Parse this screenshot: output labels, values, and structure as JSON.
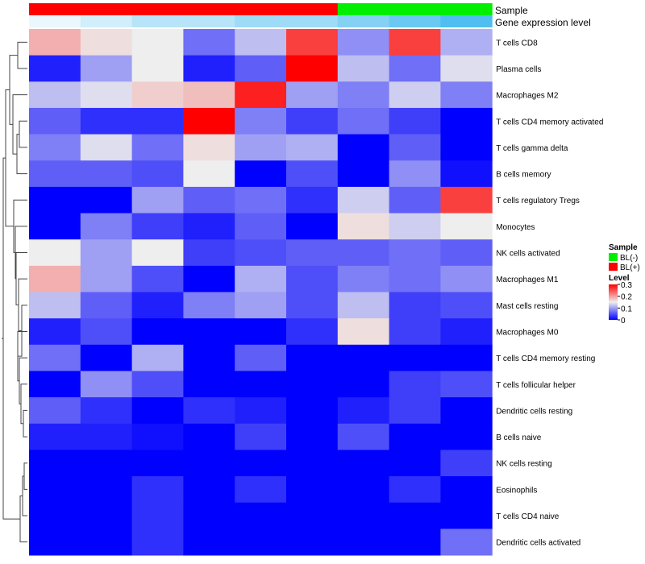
{
  "chart_data": {
    "type": "heatmap",
    "annotation_rows": [
      {
        "name": "Sample"
      },
      {
        "name": "Gene expression level"
      }
    ],
    "sample_group": [
      "BL(+)",
      "BL(+)",
      "BL(+)",
      "BL(+)",
      "BL(+)",
      "BL(+)",
      "BL(-)",
      "BL(-)",
      "BL(-)"
    ],
    "gene_expression_level": [
      1,
      2,
      3,
      3,
      4,
      4,
      5,
      6,
      7
    ],
    "rows": [
      "T cells CD8",
      "Plasma cells",
      "Macrophages M2",
      "T cells CD4 memory activated",
      "T cells gamma delta",
      "B cells memory",
      "T cells regulatory  Tregs",
      "Monocytes",
      "NK cells activated",
      "Macrophages M1",
      "Mast cells resting",
      "Macrophages M0",
      "T cells CD4 memory resting",
      "T cells follicular helper",
      "Dendritic cells resting",
      "B cells naive",
      "NK cells resting",
      "Eosinophils",
      "T cells CD4 naive",
      "Dendritic cells activated"
    ],
    "values": [
      [
        0.19,
        0.16,
        0.15,
        0.07,
        0.12,
        0.26,
        0.09,
        0.26,
        0.11
      ],
      [
        0.02,
        0.1,
        0.15,
        0.02,
        0.06,
        0.3,
        0.12,
        0.07,
        0.14
      ],
      [
        0.12,
        0.14,
        0.17,
        0.18,
        0.28,
        0.1,
        0.08,
        0.13,
        0.08
      ],
      [
        0.06,
        0.03,
        0.03,
        0.3,
        0.08,
        0.04,
        0.07,
        0.04,
        0.0
      ],
      [
        0.08,
        0.14,
        0.07,
        0.16,
        0.1,
        0.11,
        0.0,
        0.06,
        0.0
      ],
      [
        0.06,
        0.06,
        0.05,
        0.15,
        0.0,
        0.05,
        0.0,
        0.09,
        0.01
      ],
      [
        0.0,
        0.0,
        0.1,
        0.06,
        0.07,
        0.03,
        0.13,
        0.06,
        0.26
      ],
      [
        0.0,
        0.08,
        0.04,
        0.02,
        0.06,
        0.0,
        0.16,
        0.13,
        0.15
      ],
      [
        0.15,
        0.1,
        0.15,
        0.04,
        0.05,
        0.06,
        0.06,
        0.07,
        0.06
      ],
      [
        0.19,
        0.1,
        0.05,
        0.0,
        0.11,
        0.05,
        0.08,
        0.07,
        0.09
      ],
      [
        0.12,
        0.06,
        0.02,
        0.08,
        0.1,
        0.05,
        0.12,
        0.04,
        0.05
      ],
      [
        0.02,
        0.05,
        0.0,
        0.0,
        0.0,
        0.03,
        0.16,
        0.04,
        0.02
      ],
      [
        0.07,
        0.0,
        0.11,
        0.0,
        0.06,
        0.0,
        0.0,
        0.0,
        0.0
      ],
      [
        0.0,
        0.09,
        0.05,
        0.0,
        0.0,
        0.0,
        0.0,
        0.04,
        0.05
      ],
      [
        0.06,
        0.03,
        0.0,
        0.03,
        0.02,
        0.0,
        0.02,
        0.04,
        0.0
      ],
      [
        0.02,
        0.02,
        0.01,
        0.0,
        0.04,
        0.0,
        0.05,
        0.0,
        0.0
      ],
      [
        0.0,
        0.0,
        0.0,
        0.0,
        0.0,
        0.0,
        0.0,
        0.0,
        0.04
      ],
      [
        0.0,
        0.0,
        0.03,
        0.0,
        0.03,
        0.0,
        0.0,
        0.03,
        0.0
      ],
      [
        0.0,
        0.0,
        0.03,
        0.0,
        0.0,
        0.0,
        0.0,
        0.0,
        0.0
      ],
      [
        0.0,
        0.0,
        0.03,
        0.0,
        0.0,
        0.0,
        0.0,
        0.0,
        0.07
      ]
    ],
    "dendrogram": "rows",
    "legend": {
      "placement": "right",
      "sample_title": "Sample",
      "sample_entries": [
        {
          "label": "BL(-)",
          "color": "#00ee00"
        },
        {
          "label": "BL(+)",
          "color": "#ff0000"
        }
      ],
      "level_title": "Level",
      "level_ticks": [
        "0.3",
        "0.2",
        "0.1",
        "0"
      ],
      "level_tick_values": [
        0.3,
        0.2,
        0.1,
        0
      ],
      "color_range": [
        0,
        0.3
      ],
      "colors": {
        "low": "#0000ff",
        "mid": "#eeeeee",
        "high": "#ff0000"
      }
    }
  }
}
